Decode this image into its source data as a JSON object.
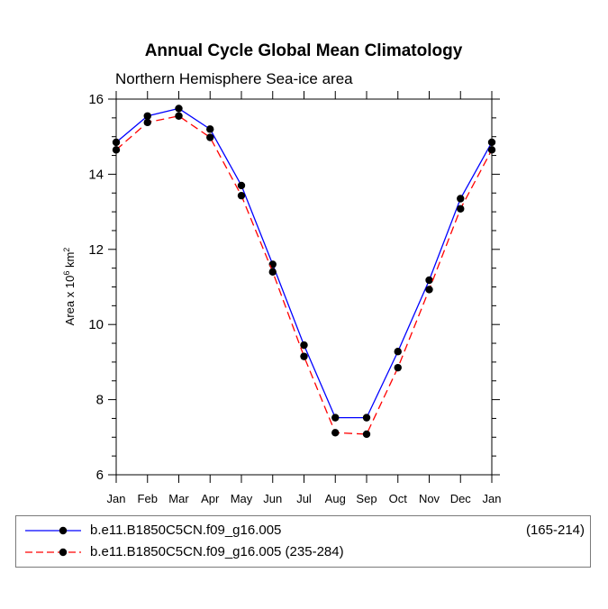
{
  "chart_data": {
    "type": "line",
    "title": "Annual Cycle Global Mean Climatology",
    "subtitle": "Northern Hemisphere Sea-ice area",
    "xlabel": "",
    "ylabel_prefix": "Area x 10",
    "ylabel_sup1": "6",
    "ylabel_mid": " km",
    "ylabel_sup2": "2",
    "ylim": [
      6,
      16
    ],
    "yticks": [
      6,
      8,
      10,
      12,
      14,
      16
    ],
    "yminor_step": 0.5,
    "categories": [
      "Jan",
      "Feb",
      "Mar",
      "Apr",
      "May",
      "Jun",
      "Jul",
      "Aug",
      "Sep",
      "Oct",
      "Nov",
      "Dec",
      "Jan"
    ],
    "series": [
      {
        "name": "b.e11.B1850C5CN.f09_g16.005",
        "period": "(165-214)",
        "color": "#0000ff",
        "dash": "solid",
        "values": [
          14.85,
          15.55,
          15.75,
          15.2,
          13.7,
          11.6,
          9.45,
          7.52,
          7.52,
          9.28,
          11.18,
          13.35,
          14.85
        ]
      },
      {
        "name": "b.e11.B1850C5CN.f09_g16.005 (235-284)",
        "color": "#ff0000",
        "dash": "dashed",
        "values": [
          14.65,
          15.38,
          15.55,
          14.98,
          13.43,
          11.4,
          9.15,
          7.12,
          7.08,
          8.85,
          10.93,
          13.08,
          14.65
        ]
      }
    ]
  }
}
